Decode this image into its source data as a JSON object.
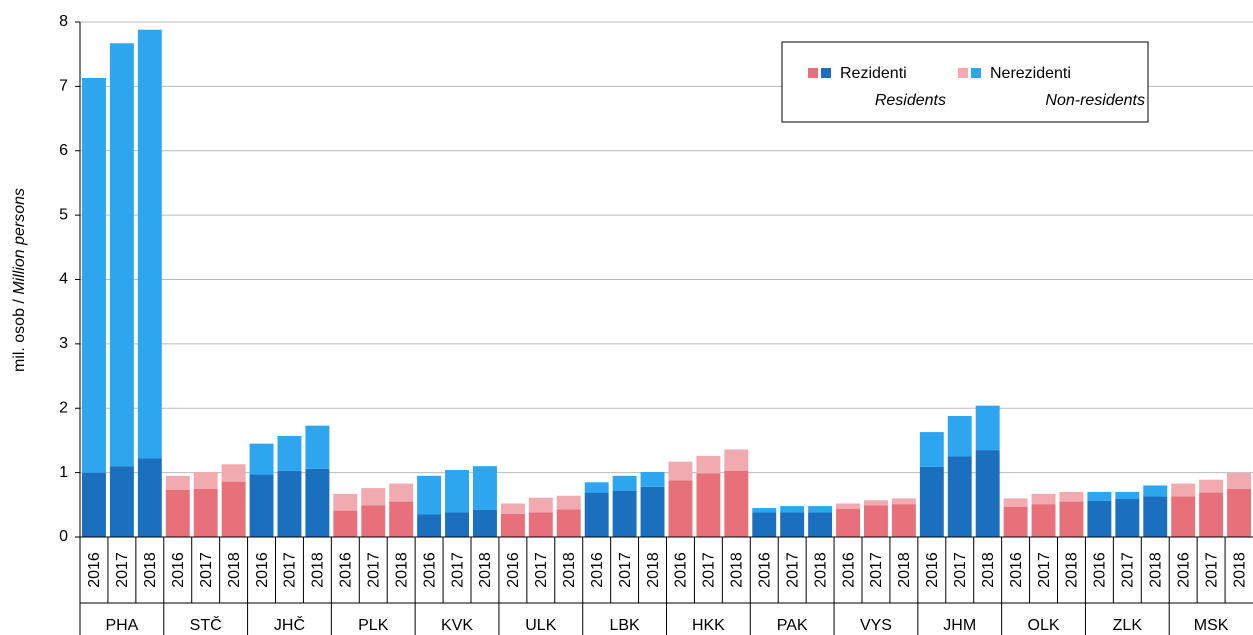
{
  "chart_data": {
    "type": "stacked-bar",
    "ylabel": [
      "mil. osob /",
      "Million persons"
    ],
    "groups": [
      "PHA",
      "STČ",
      "JHČ",
      "PLK",
      "KVK",
      "ULK",
      "LBK",
      "HKK",
      "PAK",
      "VYS",
      "JHM",
      "OLK",
      "ZLK",
      "MSK"
    ],
    "group_palette": [
      0,
      1,
      0,
      1,
      0,
      1,
      0,
      1,
      0,
      1,
      0,
      1,
      0,
      1
    ],
    "categories": [
      "2016",
      "2017",
      "2018",
      "2016",
      "2017",
      "2018",
      "2016",
      "2017",
      "2018",
      "2016",
      "2017",
      "2018",
      "2016",
      "2017",
      "2018",
      "2016",
      "2017",
      "2018",
      "2016",
      "2017",
      "2018",
      "2016",
      "2017",
      "2018",
      "2016",
      "2017",
      "2018",
      "2016",
      "2017",
      "2018",
      "2016",
      "2017",
      "2018",
      "2016",
      "2017",
      "2018",
      "2016",
      "2017",
      "2018",
      "2016",
      "2017",
      "2018"
    ],
    "series": [
      {
        "name": "Rezidenti",
        "name_en": "Residents",
        "colors": [
          "#1a6fbf",
          "#e8707a"
        ],
        "values": [
          1.0,
          1.1,
          1.22,
          0.73,
          0.75,
          0.86,
          0.97,
          1.03,
          1.06,
          0.41,
          0.49,
          0.55,
          0.35,
          0.38,
          0.42,
          0.36,
          0.38,
          0.43,
          0.69,
          0.72,
          0.78,
          0.88,
          0.99,
          1.03,
          0.38,
          0.38,
          0.38,
          0.44,
          0.49,
          0.51,
          1.09,
          1.25,
          1.35,
          0.47,
          0.51,
          0.55,
          0.56,
          0.59,
          0.63,
          0.63,
          0.69,
          0.75
        ]
      },
      {
        "name": "Nerezidenti",
        "name_en": "Non-residents",
        "colors": [
          "#2ea6ef",
          "#f0aab0"
        ],
        "values": [
          6.13,
          6.57,
          6.66,
          0.22,
          0.26,
          0.27,
          0.48,
          0.54,
          0.67,
          0.26,
          0.27,
          0.28,
          0.6,
          0.66,
          0.68,
          0.16,
          0.23,
          0.21,
          0.16,
          0.23,
          0.23,
          0.29,
          0.27,
          0.33,
          0.07,
          0.1,
          0.1,
          0.08,
          0.08,
          0.09,
          0.54,
          0.63,
          0.69,
          0.13,
          0.16,
          0.15,
          0.14,
          0.11,
          0.17,
          0.2,
          0.2,
          0.25
        ]
      }
    ],
    "ylim": [
      0,
      8
    ],
    "yticks": [
      0,
      1,
      2,
      3,
      4,
      5,
      6,
      7,
      8
    ],
    "grid": true
  }
}
